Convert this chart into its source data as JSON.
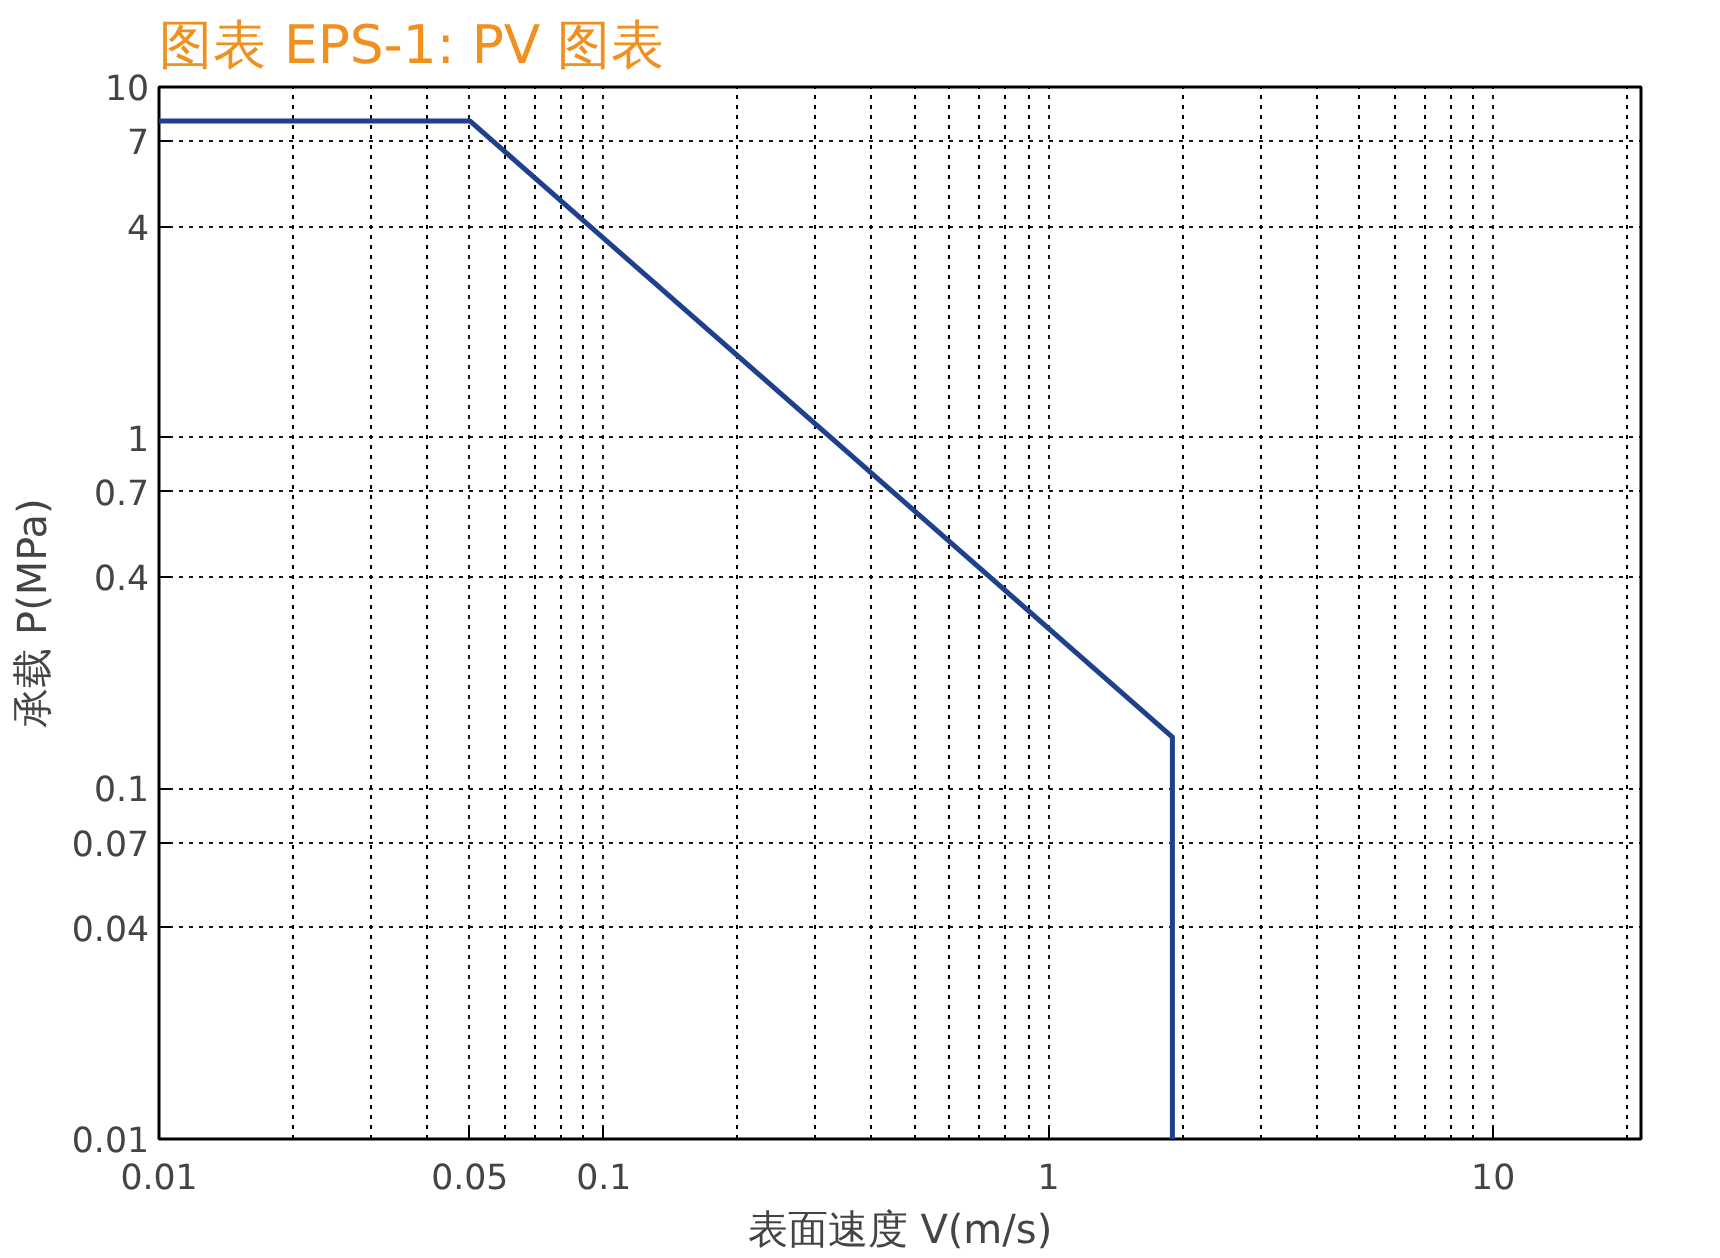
{
  "chart_data": {
    "type": "line",
    "title": "图表 EPS-1: PV 图表",
    "xlabel": "表面速度 V(m/s)",
    "ylabel": "承载 P(MPa)",
    "log": "xy",
    "grid": true,
    "marker": "none",
    "line_style": "solid",
    "xlim": [
      0.01,
      21.5
    ],
    "xticks": [
      0.01,
      0.05,
      0.1,
      1,
      10
    ],
    "ylim": [
      0.01,
      10
    ],
    "yticks": [
      10,
      7,
      4,
      1,
      0.7,
      0.4,
      0.1,
      0.07,
      0.04,
      0.01
    ],
    "series": [
      {
        "color": "#1f3f8f",
        "x": [
          0.01,
          0.05,
          1.9,
          1.9
        ],
        "values": [
          8,
          8,
          0.14,
          0.01
        ]
      }
    ]
  }
}
